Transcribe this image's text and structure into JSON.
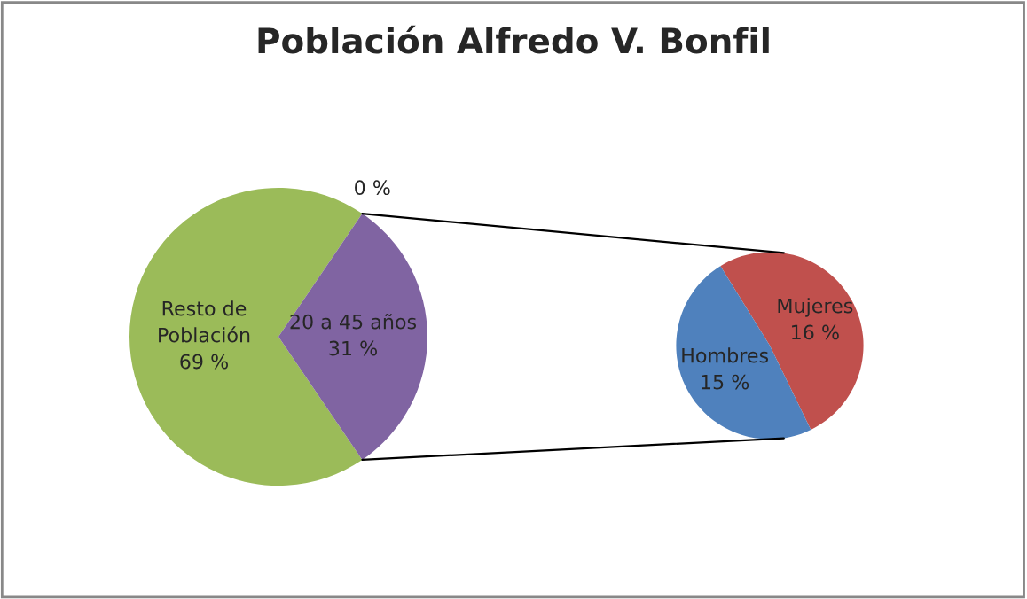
{
  "chart_data": [
    {
      "type": "pie",
      "title": "Población Alfredo V. Bonfil",
      "categories": [
        "Resto de\nPoblación",
        "20 a 45 años",
        null
      ],
      "values": [
        69,
        31,
        0
      ],
      "value_labels": [
        "69 %",
        "31 %",
        "0 %"
      ],
      "colors": [
        "#9bbb59",
        "#8064a2",
        "#4bacc6"
      ]
    },
    {
      "type": "pie",
      "categories": [
        "Mujeres",
        "Hombres"
      ],
      "values": [
        16,
        15
      ],
      "value_labels": [
        "16 %",
        "15 %"
      ],
      "colors": [
        "#c0504d",
        "#4f81bd"
      ]
    }
  ]
}
